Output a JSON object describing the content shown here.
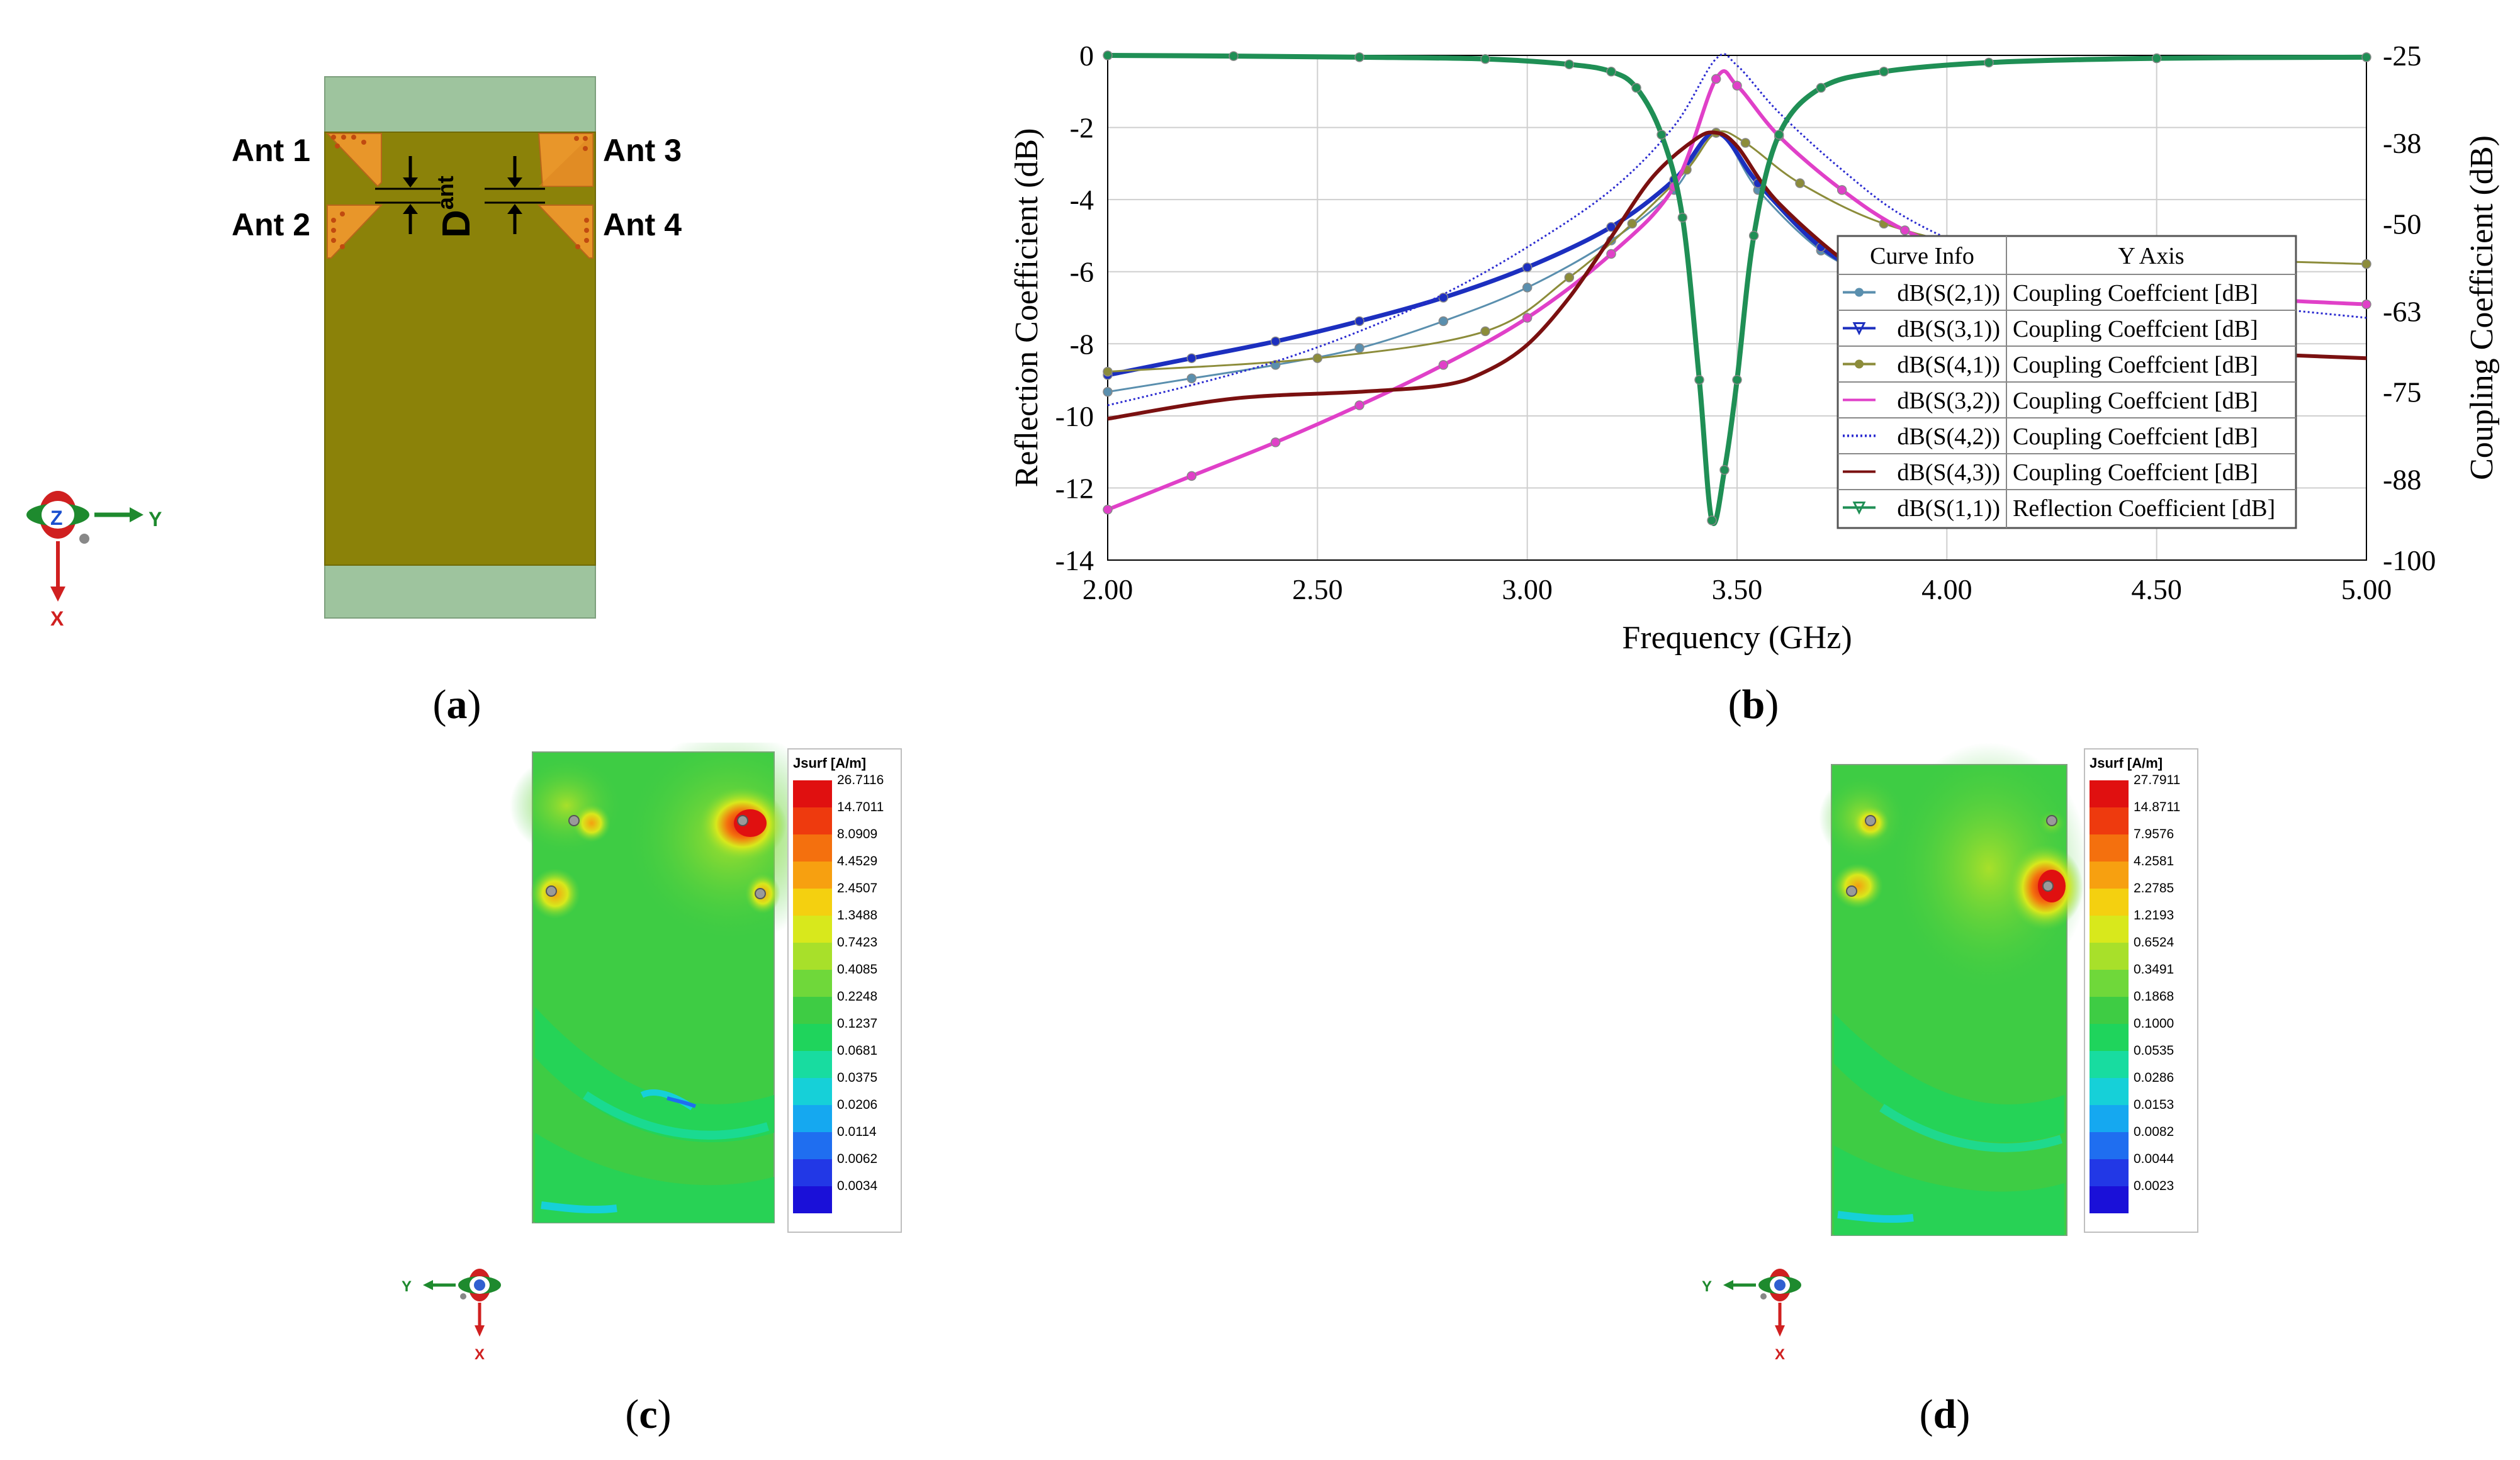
{
  "panel_a": {
    "ant_labels": [
      "Ant 1",
      "Ant 2",
      "Ant 3",
      "Ant 4"
    ],
    "spacing_label_main": "D",
    "spacing_label_sub": "ant",
    "axis_labels": {
      "z": "Z",
      "y": "Y",
      "x": "X"
    },
    "colors": {
      "substrate": "#8b8209",
      "ground_extension": "#9ec49e",
      "antenna": "#e8962a"
    }
  },
  "chart_data": {
    "type": "line",
    "xlabel": "Frequency (GHz)",
    "ylabel_left": "Reflection Coefficient (dB)",
    "ylabel_right": "Coupling Coefficient (dB)",
    "xlim": [
      2.0,
      5.0
    ],
    "ylim_left": [
      -14,
      0
    ],
    "ylim_right": [
      -100,
      -25
    ],
    "x_ticks": [
      "2.00",
      "2.50",
      "3.00",
      "3.50",
      "4.00",
      "4.50",
      "5.00"
    ],
    "y_left_ticks": [
      "0",
      "-2",
      "-4",
      "-6",
      "-8",
      "-10",
      "-12",
      "-14"
    ],
    "y_right_ticks": [
      "-25",
      "-38",
      "-50",
      "-63",
      "-75",
      "-88",
      "-100"
    ],
    "grid": true,
    "legend": {
      "position": "right",
      "header_curve": "Curve Info",
      "header_axis": "Y Axis",
      "entries": [
        {
          "name": "dB(S(2,1))",
          "axis": "Coupling Coeffcient [dB]",
          "color": "#5a8fae",
          "marker": "circle"
        },
        {
          "name": "dB(S(3,1))",
          "axis": "Coupling Coeffcient [dB]",
          "color": "#1c2fbf",
          "marker": "triangle-down"
        },
        {
          "name": "dB(S(4,1))",
          "axis": "Coupling Coeffcient [dB]",
          "color": "#8c8c3a",
          "marker": "circle"
        },
        {
          "name": "dB(S(3,2))",
          "axis": "Coupling Coeffcient [dB]",
          "color": "#e040c8",
          "marker": "none"
        },
        {
          "name": "dB(S(4,2))",
          "axis": "Coupling Coeffcient [dB]",
          "color": "#2a2ad0",
          "marker": "dotted"
        },
        {
          "name": "dB(S(4,3))",
          "axis": "Coupling Coeffcient [dB]",
          "color": "#7a1010",
          "marker": "none"
        },
        {
          "name": "dB(S(1,1))",
          "axis": "Reflection Coefficient [dB]",
          "color": "#1f8f55",
          "marker": "triangle-down"
        }
      ]
    },
    "series": [
      {
        "name": "dB(S(2,1))",
        "axis": "right",
        "color": "#5a8fae",
        "dash": "none",
        "width": 3,
        "markers": true,
        "x": [
          2.0,
          2.2,
          2.4,
          2.6,
          2.8,
          3.0,
          3.2,
          3.35,
          3.45,
          3.55,
          3.7,
          3.85,
          4.0
        ],
        "y": [
          -75.0,
          -73.0,
          -71.0,
          -68.5,
          -64.5,
          -59.5,
          -52.5,
          -45.0,
          -36.5,
          -45.0,
          -54.0,
          -58.5,
          -60.5
        ]
      },
      {
        "name": "dB(S(3,1))",
        "axis": "right",
        "color": "#1c2fbf",
        "dash": "none",
        "width": 7,
        "markers": true,
        "x": [
          2.0,
          2.2,
          2.4,
          2.6,
          2.8,
          3.0,
          3.2,
          3.35,
          3.45,
          3.55,
          3.7,
          3.85,
          4.0
        ],
        "y": [
          -72.5,
          -70.0,
          -67.5,
          -64.5,
          -61.0,
          -56.5,
          -50.5,
          -43.5,
          -36.5,
          -44.0,
          -53.5,
          -58.5,
          -60.0
        ]
      },
      {
        "name": "dB(S(4,1))",
        "axis": "right",
        "color": "#8c8c3a",
        "dash": "none",
        "width": 3,
        "markers": true,
        "x": [
          2.0,
          2.5,
          2.9,
          3.1,
          3.25,
          3.38,
          3.45,
          3.52,
          3.65,
          3.85,
          4.1,
          4.5,
          5.0
        ],
        "y": [
          -72.0,
          -70.0,
          -66.0,
          -58.0,
          -50.0,
          -42.0,
          -36.5,
          -38.0,
          -44.0,
          -50.0,
          -53.5,
          -55.0,
          -56.0
        ]
      },
      {
        "name": "dB(S(3,2))",
        "axis": "right",
        "color": "#e040c8",
        "dash": "none",
        "width": 6,
        "markers": true,
        "x": [
          2.0,
          2.2,
          2.4,
          2.6,
          2.8,
          3.0,
          3.2,
          3.35,
          3.45,
          3.5,
          3.6,
          3.75,
          3.9,
          4.1,
          4.4,
          4.7,
          5.0
        ],
        "y": [
          -92.5,
          -87.5,
          -82.5,
          -77.0,
          -71.0,
          -64.0,
          -54.5,
          -44.5,
          -28.5,
          -29.5,
          -37.0,
          -45.0,
          -51.0,
          -55.5,
          -59.0,
          -61.0,
          -62.0
        ]
      },
      {
        "name": "dB(S(4,2))",
        "axis": "right",
        "color": "#2a2ad0",
        "dash": "3,4",
        "width": 3,
        "markers": false,
        "x": [
          2.0,
          2.2,
          2.4,
          2.6,
          2.8,
          3.0,
          3.2,
          3.35,
          3.45,
          3.5,
          3.6,
          3.75,
          3.9,
          4.1,
          4.4,
          4.7,
          5.0
        ],
        "y": [
          -77.0,
          -74.0,
          -70.5,
          -66.0,
          -60.5,
          -53.5,
          -45.0,
          -35.5,
          -25.5,
          -26.5,
          -33.5,
          -42.0,
          -49.0,
          -54.5,
          -59.0,
          -62.0,
          -64.0
        ]
      },
      {
        "name": "dB(S(4,3))",
        "axis": "right",
        "color": "#7a1010",
        "dash": "none",
        "width": 6,
        "markers": false,
        "x": [
          2.0,
          2.3,
          2.6,
          2.8,
          2.9,
          3.0,
          3.1,
          3.2,
          3.3,
          3.4,
          3.45,
          3.5,
          3.6,
          3.8,
          4.0,
          4.3,
          4.6,
          5.0
        ],
        "y": [
          -79.0,
          -76.0,
          -75.0,
          -74.0,
          -72.0,
          -68.0,
          -61.0,
          -52.0,
          -43.0,
          -37.5,
          -36.5,
          -38.5,
          -47.0,
          -57.5,
          -63.0,
          -68.0,
          -69.0,
          -70.0
        ]
      },
      {
        "name": "dB(S(1,1))",
        "axis": "left",
        "color": "#1f8f55",
        "dash": "none",
        "width": 8,
        "markers": true,
        "x": [
          2.0,
          2.3,
          2.6,
          2.9,
          3.1,
          3.2,
          3.26,
          3.32,
          3.37,
          3.41,
          3.44,
          3.47,
          3.5,
          3.54,
          3.6,
          3.7,
          3.85,
          4.1,
          4.5,
          5.0
        ],
        "y": [
          0.0,
          -0.02,
          -0.05,
          -0.1,
          -0.25,
          -0.45,
          -0.9,
          -2.2,
          -4.5,
          -9.0,
          -12.9,
          -11.5,
          -9.0,
          -5.0,
          -2.2,
          -0.9,
          -0.45,
          -0.2,
          -0.08,
          -0.05
        ]
      }
    ]
  },
  "panel_c": {
    "colorbar_title": "Jsurf [A/m]",
    "ticks": [
      "26.7116",
      "14.7011",
      "8.0909",
      "4.4529",
      "2.4507",
      "1.3488",
      "0.7423",
      "0.4085",
      "0.2248",
      "0.1237",
      "0.0681",
      "0.0375",
      "0.0206",
      "0.0114",
      "0.0062",
      "0.0034"
    ],
    "axis_labels": {
      "y": "Y",
      "x": "X"
    }
  },
  "panel_d": {
    "colorbar_title": "Jsurf [A/m]",
    "ticks": [
      "27.7911",
      "14.8711",
      "7.9576",
      "4.2581",
      "2.2785",
      "1.2193",
      "0.6524",
      "0.3491",
      "0.1868",
      "0.1000",
      "0.0535",
      "0.0286",
      "0.0153",
      "0.0082",
      "0.0044",
      "0.0023"
    ],
    "axis_labels": {
      "y": "Y",
      "x": "X"
    }
  },
  "colormap": [
    "#e01010",
    "#ee3a0e",
    "#f4700e",
    "#f7a010",
    "#f4d010",
    "#d8e81c",
    "#a8e02a",
    "#6fd83a",
    "#3ecc44",
    "#1fd45c",
    "#18dca0",
    "#16d0d8",
    "#15a8f0",
    "#1f6ef0",
    "#2238e6",
    "#1a10d8"
  ],
  "captions": {
    "a": "a",
    "b": "b",
    "c": "c",
    "d": "d"
  }
}
